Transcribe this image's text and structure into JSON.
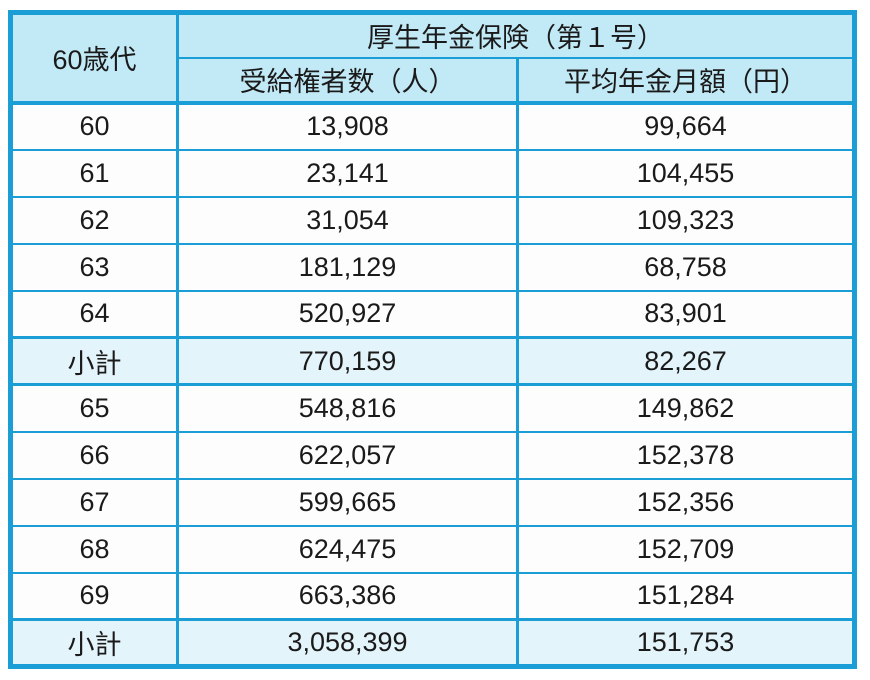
{
  "colors": {
    "border": "#1b9ed6",
    "header_bg": "#c2e9f6",
    "subtotal_bg": "#e4f4fb",
    "row_bg": "#fdfdfd",
    "text": "#1a1a1a"
  },
  "table": {
    "corner_header": "60歳代",
    "group_header": "厚生年金保険（第１号）",
    "col_headers": [
      "受給権者数（人）",
      "平均年金月額（円）"
    ],
    "rows": [
      {
        "age": "60",
        "recipients": "13,908",
        "avg": "99,664"
      },
      {
        "age": "61",
        "recipients": "23,141",
        "avg": "104,455"
      },
      {
        "age": "62",
        "recipients": "31,054",
        "avg": "109,323"
      },
      {
        "age": "63",
        "recipients": "181,129",
        "avg": "68,758"
      },
      {
        "age": "64",
        "recipients": "520,927",
        "avg": "83,901"
      },
      {
        "age": "小計",
        "recipients": "770,159",
        "avg": "82,267"
      },
      {
        "age": "65",
        "recipients": "548,816",
        "avg": "149,862"
      },
      {
        "age": "66",
        "recipients": "622,057",
        "avg": "152,378"
      },
      {
        "age": "67",
        "recipients": "599,665",
        "avg": "152,356"
      },
      {
        "age": "68",
        "recipients": "624,475",
        "avg": "152,709"
      },
      {
        "age": "69",
        "recipients": "663,386",
        "avg": "151,284"
      },
      {
        "age": "小計",
        "recipients": "3,058,399",
        "avg": "151,753"
      }
    ]
  },
  "chart_data": {
    "type": "table",
    "title": "厚生年金保険（第１号）",
    "row_axis_label": "60歳代",
    "categories": [
      "60",
      "61",
      "62",
      "63",
      "64",
      "小計",
      "65",
      "66",
      "67",
      "68",
      "69",
      "小計"
    ],
    "series": [
      {
        "name": "受給権者数（人）",
        "values": [
          13908,
          23141,
          31054,
          181129,
          520927,
          770159,
          548816,
          622057,
          599665,
          624475,
          663386,
          3058399
        ]
      },
      {
        "name": "平均年金月額（円）",
        "values": [
          99664,
          104455,
          109323,
          68758,
          83901,
          82267,
          149862,
          152378,
          152356,
          152709,
          151284,
          151753
        ]
      }
    ]
  }
}
